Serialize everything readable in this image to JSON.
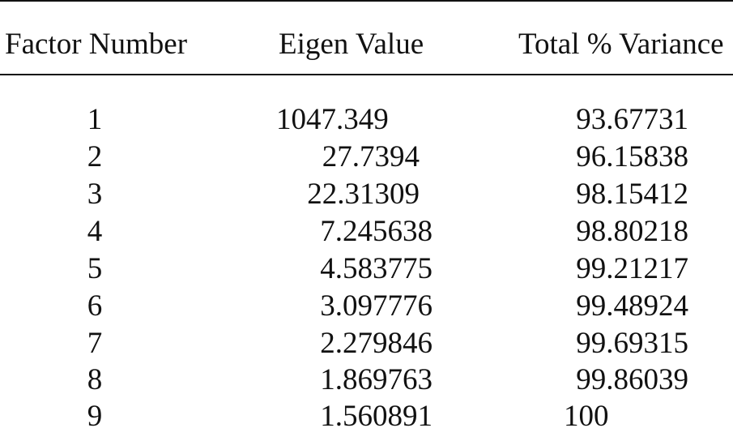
{
  "table": {
    "columns": [
      "Factor Number",
      "Eigen Value",
      "Total % Variance"
    ],
    "rows": [
      {
        "factor": "1",
        "eigen": "1047.349",
        "variance": "93.67731"
      },
      {
        "factor": "2",
        "eigen": "27.7394",
        "variance": "96.15838"
      },
      {
        "factor": "3",
        "eigen": "22.31309",
        "variance": "98.15412"
      },
      {
        "factor": "4",
        "eigen": "7.245638",
        "variance": "98.80218"
      },
      {
        "factor": "5",
        "eigen": "4.583775",
        "variance": "99.21217"
      },
      {
        "factor": "6",
        "eigen": "3.097776",
        "variance": "99.48924"
      },
      {
        "factor": "7",
        "eigen": "2.279846",
        "variance": "99.69315"
      },
      {
        "factor": "8",
        "eigen": "1.869763",
        "variance": "99.86039"
      },
      {
        "factor": "9",
        "eigen": "1.560891",
        "variance": "100"
      }
    ]
  }
}
